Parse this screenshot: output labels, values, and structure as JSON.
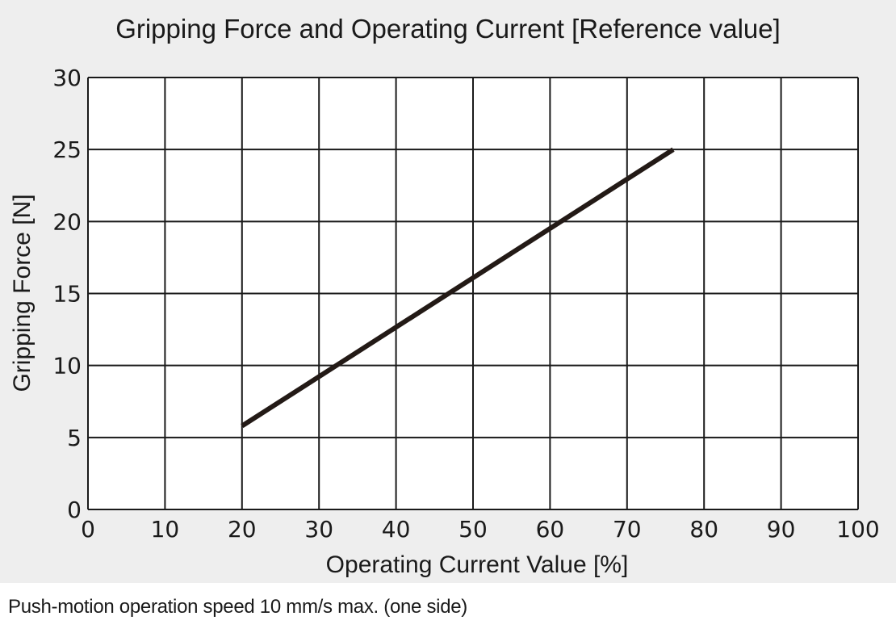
{
  "chart_data": {
    "type": "line",
    "title": "Gripping Force and Operating Current [Reference value]",
    "xlabel": "Operating Current Value [%]",
    "ylabel": "Gripping Force [N]",
    "xlim": [
      0,
      100
    ],
    "ylim": [
      0,
      30
    ],
    "xticks": [
      "0",
      "10",
      "20",
      "30",
      "40",
      "50",
      "60",
      "70",
      "80",
      "90",
      "100"
    ],
    "yticks": [
      "0",
      "5",
      "10",
      "15",
      "20",
      "25",
      "30"
    ],
    "grid": true,
    "series": [
      {
        "x": [
          20,
          76
        ],
        "y": [
          5.8,
          25
        ],
        "color": "#231a16"
      }
    ]
  },
  "caption": "Push-motion operation speed 10 mm/s max. (one side)"
}
